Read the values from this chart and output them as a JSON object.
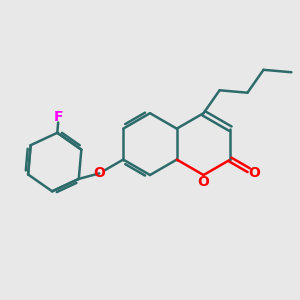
{
  "background_color": "#e8e8e8",
  "bond_color": "#2d6b6b",
  "oxygen_color": "#ff0000",
  "fluorine_color": "#ff00ff",
  "bond_width": 1.8,
  "figsize": [
    3.0,
    3.0
  ],
  "dpi": 100,
  "xlim": [
    0,
    10
  ],
  "ylim": [
    0,
    10
  ]
}
